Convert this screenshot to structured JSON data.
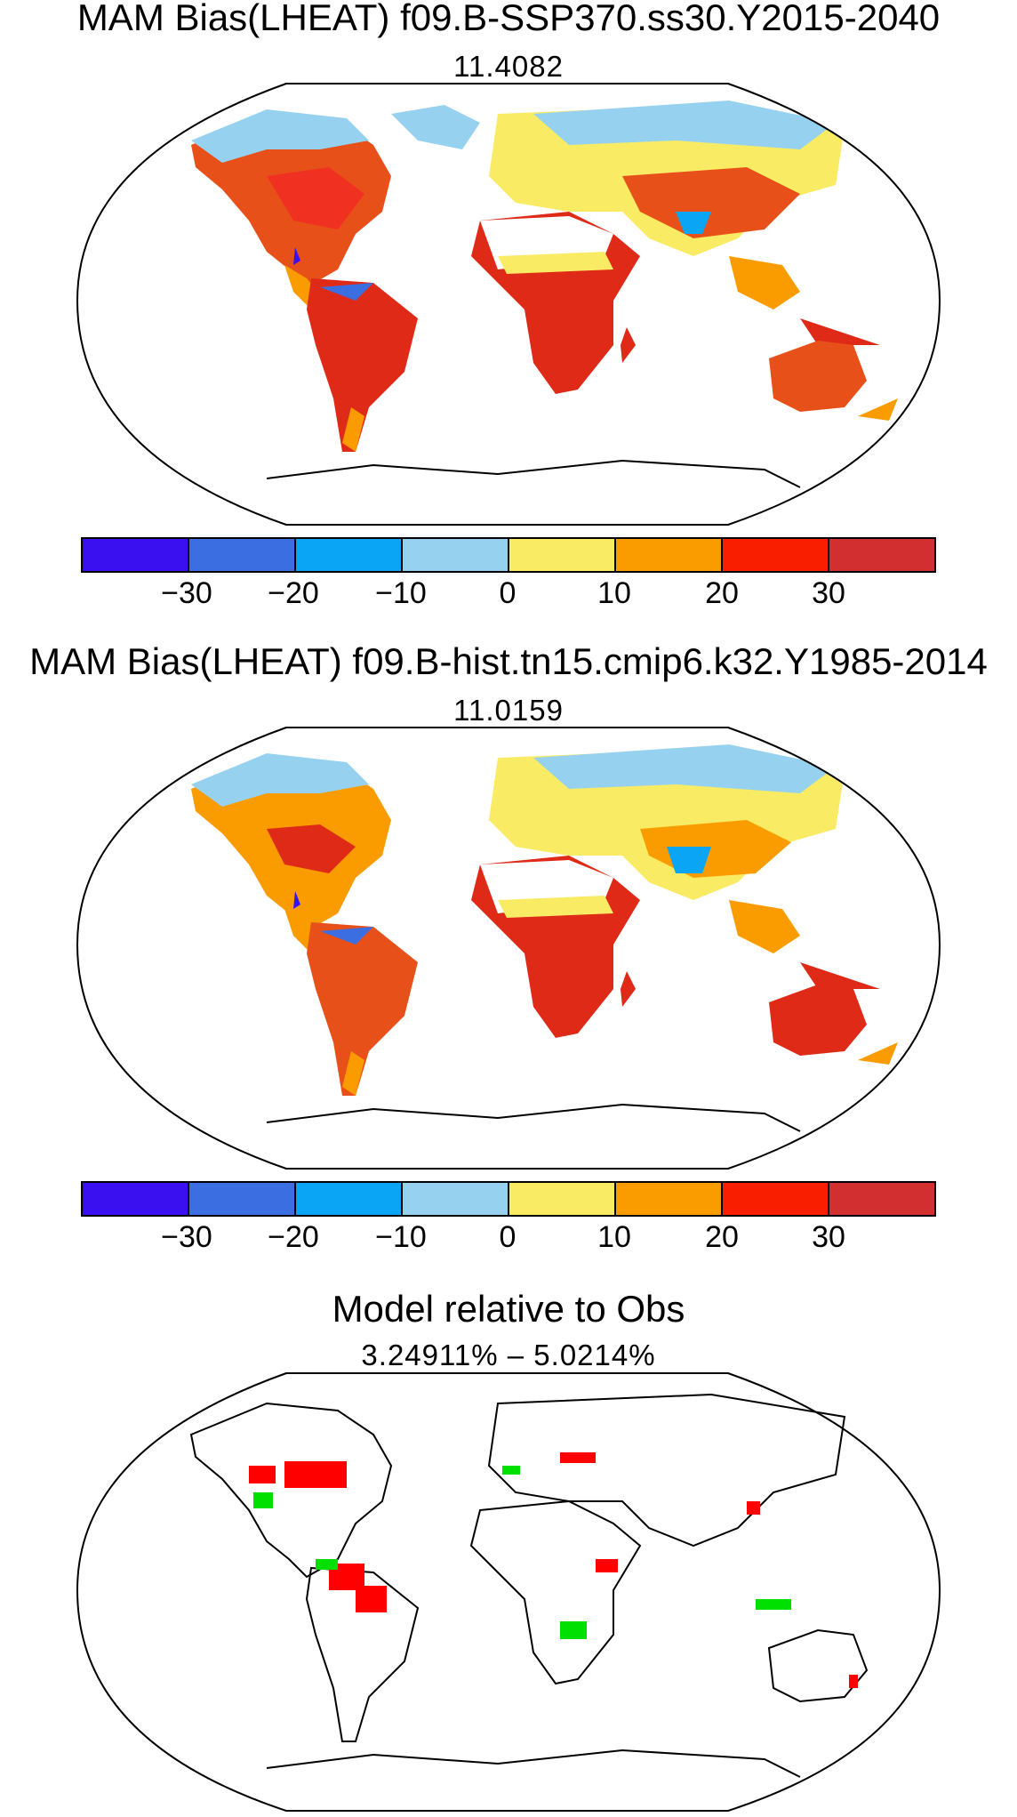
{
  "panels": [
    {
      "title": "MAM Bias(LHEAT) f09.B-SSP370.ss30.Y2015-2040",
      "subtitle": "11.4082",
      "map": "bias"
    },
    {
      "title": "MAM Bias(LHEAT) f09.B-hist.tn15.cmip6.k32.Y1985-2014",
      "subtitle": "11.0159",
      "map": "bias"
    },
    {
      "title": "Model relative to Obs",
      "subtitle": "3.24911% – 5.0214%",
      "map": "relative"
    }
  ],
  "colorbar": {
    "colors": [
      "#3a10f0",
      "#3b6ee0",
      "#0aa6f5",
      "#96d2f0",
      "#faeb64",
      "#fa9c00",
      "#fa1e00",
      "#d23030"
    ],
    "tick_labels": [
      "−30",
      "−20",
      "−10",
      "0",
      "10",
      "20",
      "30"
    ]
  },
  "relative_colors": {
    "model_better": "#00e000",
    "model_worse": "#ff0000"
  },
  "projection": "Robinson"
}
